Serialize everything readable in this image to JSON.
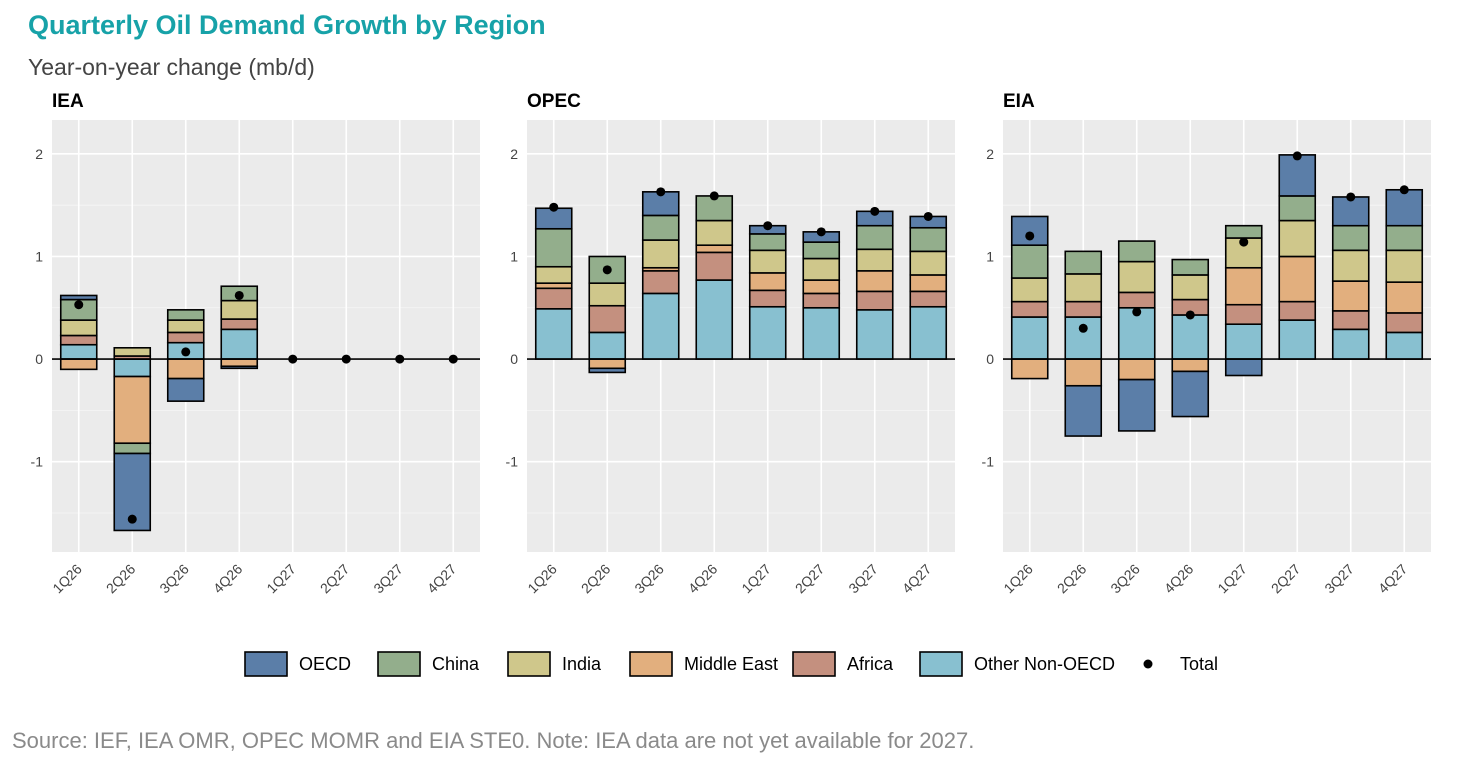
{
  "title": "Quarterly Oil Demand Growth by Region",
  "subtitle": "Year-on-year change (mb/d)",
  "source": "Source: IEF, IEA OMR, OPEC MOMR and EIA STE0. Note: IEA data are not yet available for 2027.",
  "legend": [
    {
      "name": "OECD",
      "color": "#5b7ea8"
    },
    {
      "name": "China",
      "color": "#93ae8c"
    },
    {
      "name": "India",
      "color": "#cfc78b"
    },
    {
      "name": "Middle East",
      "color": "#e2af7e"
    },
    {
      "name": "Africa",
      "color": "#c4907f"
    },
    {
      "name": "Other Non-OECD",
      "color": "#88c0d0"
    },
    {
      "name": "Total",
      "color": "#000000"
    }
  ],
  "chart_data": [
    {
      "type": "bar",
      "stacked": true,
      "title": "IEA",
      "categories": [
        "1Q26",
        "2Q26",
        "3Q26",
        "4Q26",
        "1Q27",
        "2Q27",
        "3Q27",
        "4Q27"
      ],
      "ylim": [
        -1.88,
        2.33
      ],
      "yticks": [
        -1,
        0,
        1,
        2
      ],
      "grid": true,
      "series": [
        {
          "name": "OECD",
          "values": [
            0.04,
            -0.75,
            -0.22,
            -0.02,
            null,
            null,
            null,
            null
          ]
        },
        {
          "name": "China",
          "values": [
            0.2,
            -0.1,
            0.1,
            0.14,
            null,
            null,
            null,
            null
          ]
        },
        {
          "name": "India",
          "values": [
            0.15,
            0.08,
            0.12,
            0.18,
            null,
            null,
            null,
            null
          ]
        },
        {
          "name": "Middle East",
          "values": [
            -0.1,
            -0.65,
            -0.19,
            -0.07,
            null,
            null,
            null,
            null
          ]
        },
        {
          "name": "Africa",
          "values": [
            0.09,
            0.03,
            0.1,
            0.1,
            null,
            null,
            null,
            null
          ]
        },
        {
          "name": "Other Non-OECD",
          "values": [
            0.14,
            -0.17,
            0.16,
            0.29,
            null,
            null,
            null,
            null
          ]
        }
      ],
      "total": [
        0.53,
        -1.56,
        0.07,
        0.62,
        0,
        0,
        0,
        0
      ]
    },
    {
      "type": "bar",
      "stacked": true,
      "title": "OPEC",
      "categories": [
        "1Q26",
        "2Q26",
        "3Q26",
        "4Q26",
        "1Q27",
        "2Q27",
        "3Q27",
        "4Q27"
      ],
      "ylim": [
        -1.88,
        2.33
      ],
      "yticks": [
        -1,
        0,
        1,
        2
      ],
      "grid": true,
      "series": [
        {
          "name": "OECD",
          "values": [
            0.2,
            -0.04,
            0.23,
            0.0,
            0.08,
            0.1,
            0.14,
            0.11
          ]
        },
        {
          "name": "China",
          "values": [
            0.37,
            0.26,
            0.24,
            0.24,
            0.16,
            0.16,
            0.23,
            0.23
          ]
        },
        {
          "name": "India",
          "values": [
            0.16,
            0.22,
            0.27,
            0.24,
            0.22,
            0.21,
            0.21,
            0.23
          ]
        },
        {
          "name": "Middle East",
          "values": [
            0.05,
            -0.09,
            0.03,
            0.07,
            0.17,
            0.13,
            0.2,
            0.16
          ]
        },
        {
          "name": "Africa",
          "values": [
            0.2,
            0.26,
            0.22,
            0.27,
            0.16,
            0.14,
            0.18,
            0.15
          ]
        },
        {
          "name": "Other Non-OECD",
          "values": [
            0.49,
            0.26,
            0.64,
            0.77,
            0.51,
            0.5,
            0.48,
            0.51
          ]
        }
      ],
      "total": [
        1.48,
        0.87,
        1.63,
        1.59,
        1.3,
        1.24,
        1.44,
        1.39
      ]
    },
    {
      "type": "bar",
      "stacked": true,
      "title": "EIA",
      "categories": [
        "1Q26",
        "2Q26",
        "3Q26",
        "4Q26",
        "1Q27",
        "2Q27",
        "3Q27",
        "4Q27"
      ],
      "ylim": [
        -1.88,
        2.33
      ],
      "yticks": [
        -1,
        0,
        1,
        2
      ],
      "grid": true,
      "series": [
        {
          "name": "OECD",
          "values": [
            0.28,
            -0.49,
            -0.5,
            -0.44,
            -0.16,
            0.4,
            0.28,
            0.35
          ]
        },
        {
          "name": "China",
          "values": [
            0.32,
            0.22,
            0.2,
            0.15,
            0.12,
            0.24,
            0.24,
            0.24
          ]
        },
        {
          "name": "India",
          "values": [
            0.23,
            0.27,
            0.3,
            0.24,
            0.29,
            0.35,
            0.3,
            0.31
          ]
        },
        {
          "name": "Middle East",
          "values": [
            -0.19,
            -0.26,
            -0.2,
            -0.12,
            0.36,
            0.44,
            0.29,
            0.3
          ]
        },
        {
          "name": "Africa",
          "values": [
            0.15,
            0.15,
            0.15,
            0.15,
            0.19,
            0.18,
            0.18,
            0.19
          ]
        },
        {
          "name": "Other Non-OECD",
          "values": [
            0.41,
            0.41,
            0.5,
            0.43,
            0.34,
            0.38,
            0.29,
            0.26
          ]
        }
      ],
      "total": [
        1.2,
        0.3,
        0.46,
        0.43,
        1.14,
        1.98,
        1.58,
        1.65
      ]
    }
  ]
}
